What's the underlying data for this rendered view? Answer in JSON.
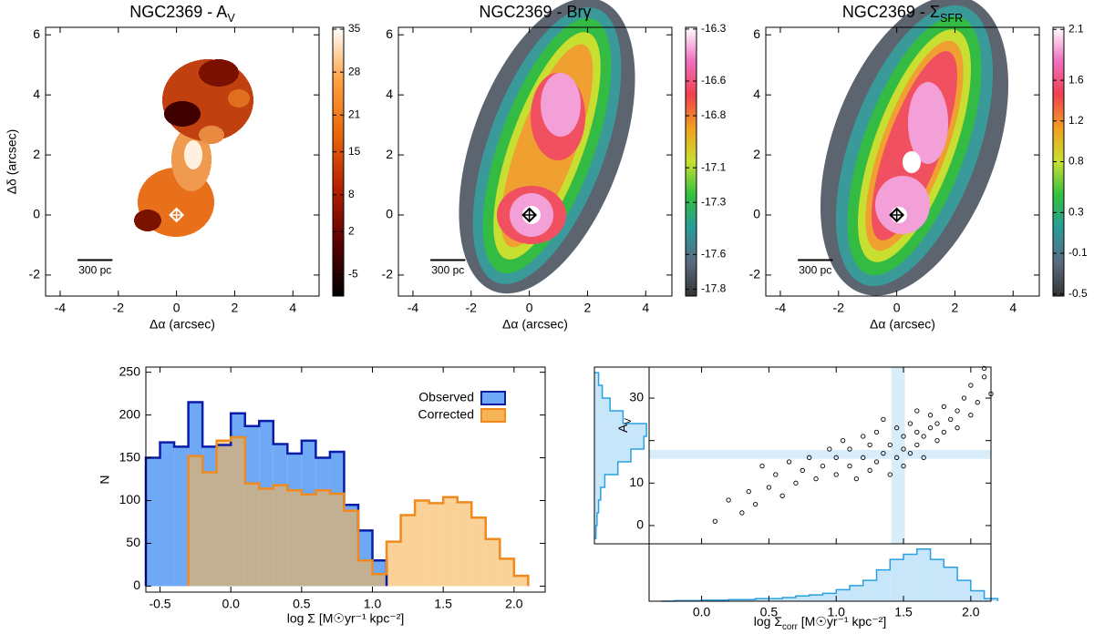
{
  "chart_data": [
    {
      "type": "heatmap",
      "title": {
        "text": "NGC2369 - A",
        "sub": "V"
      },
      "xlabel": "Δα (arcsec)",
      "ylabel": "Δδ (arcsec)",
      "xlim": [
        -4.5,
        4.9
      ],
      "ylim": [
        -2.7,
        6.25
      ],
      "xticks": [
        -4,
        -2,
        0,
        2,
        4
      ],
      "yticks": [
        -2,
        0,
        2,
        4,
        6
      ],
      "clim": [
        -8.5,
        35.3
      ],
      "cticks": [
        35,
        28,
        21,
        15,
        8,
        2,
        -5
      ],
      "colormap": [
        "#000000",
        "#5a0000",
        "#b42000",
        "#e8650a",
        "#ffa040",
        "#ffffff"
      ],
      "nucleus": [
        0,
        0
      ],
      "markercolor": "#ffffff",
      "scalebar": {
        "label": "300 pc",
        "x": [
          -3.4,
          -2.2
        ],
        "y": -1.5
      }
    },
    {
      "type": "heatmap",
      "title": {
        "text": "NGC2369 - Brγ"
      },
      "xlabel": "Δα (arcsec)",
      "xlim": [
        -4.5,
        4.9
      ],
      "ylim": [
        -2.7,
        6.25
      ],
      "xticks": [
        -4,
        -2,
        0,
        2,
        4
      ],
      "yticks": [
        -2,
        0,
        2,
        4,
        6
      ],
      "clim": [
        -17.84,
        -16.29
      ],
      "cticks": [
        -16.3,
        -16.6,
        -16.8,
        -17.1,
        -17.3,
        -17.6,
        -17.8
      ],
      "colormap": [
        "#333333",
        "#5a6a80",
        "#2a9a9a",
        "#30c040",
        "#c8e030",
        "#f0a020",
        "#f04050",
        "#f070c0",
        "#ffffff"
      ],
      "nucleus": [
        0,
        0
      ],
      "markercolor": "#000000",
      "scalebar": {
        "label": "300 pc",
        "x": [
          -3.4,
          -2.2
        ],
        "y": -1.5
      }
    },
    {
      "type": "heatmap",
      "title": {
        "text": "NGC2369 - Σ",
        "sub": "SFR"
      },
      "xlabel": "Δα (arcsec)",
      "xlim": [
        -4.5,
        4.9
      ],
      "ylim": [
        -2.7,
        6.25
      ],
      "xticks": [
        -4,
        -2,
        0,
        2,
        4
      ],
      "yticks": [
        -2,
        0,
        2,
        4,
        6
      ],
      "clim": [
        -0.52,
        2.12
      ],
      "cticks": [
        2.1,
        1.6,
        1.2,
        0.8,
        0.3,
        -0.1,
        -0.5
      ],
      "colormap": [
        "#333333",
        "#5a6a80",
        "#2a9a9a",
        "#30c040",
        "#c8e030",
        "#f0a020",
        "#f04050",
        "#f070c0",
        "#ffffff"
      ],
      "nucleus": [
        0,
        0
      ],
      "markercolor": "#000000",
      "scalebar": {
        "label": "300 pc",
        "x": [
          -3.4,
          -2.2
        ],
        "y": -1.5
      }
    },
    {
      "type": "histogram",
      "xlabel": "log Σ [M☉yr⁻¹ kpc⁻²]",
      "ylabel": "N",
      "bins": [
        -0.6,
        -0.5,
        -0.4,
        -0.3,
        -0.2,
        -0.1,
        0,
        0.1,
        0.2,
        0.3,
        0.4,
        0.5,
        0.6,
        0.7,
        0.8,
        0.9,
        1,
        1.1,
        1.2,
        1.3,
        1.4,
        1.5,
        1.6,
        1.7,
        1.8,
        1.9,
        2,
        2.1
      ],
      "series": [
        {
          "name": "Observed",
          "color": "#6fa8f5",
          "edgecolor": "#0a1ca8",
          "values": [
            150,
            168,
            163,
            215,
            163,
            165,
            202,
            187,
            193,
            166,
            155,
            170,
            150,
            157,
            95,
            65,
            30,
            0,
            0,
            0,
            0,
            0,
            0,
            0,
            0,
            0,
            0
          ]
        },
        {
          "name": "Corrected",
          "color": "#f7b456",
          "edgecolor": "#f08a1e",
          "values": [
            0,
            0,
            0,
            152,
            133,
            170,
            174,
            120,
            114,
            118,
            112,
            107,
            112,
            108,
            88,
            30,
            14,
            52,
            83,
            100,
            97,
            104,
            98,
            80,
            55,
            32,
            12
          ]
        }
      ],
      "xlim": [
        -0.6,
        2.22
      ],
      "ylim": [
        -7,
        256
      ],
      "xticks": [
        -0.5,
        {
          "value": 0,
          "label": "0.0"
        },
        0.5,
        {
          "value": 1,
          "label": "1.0"
        },
        1.5,
        {
          "value": 2,
          "label": "2.0"
        }
      ],
      "yticks": [
        0,
        50,
        100,
        150,
        200,
        250
      ],
      "legend": "upper right"
    },
    {
      "type": "scatter",
      "xlabel": {
        "text": "log Σ",
        "sub": "corr",
        "rest": " [M☉yr⁻¹ kpc⁻²]"
      },
      "ylabel": {
        "text": "A",
        "sub": "V"
      },
      "x": [
        0.1,
        0.2,
        0.3,
        0.35,
        0.4,
        0.45,
        0.5,
        0.55,
        0.6,
        0.65,
        0.7,
        0.75,
        0.8,
        0.85,
        0.9,
        0.95,
        1.0,
        1.0,
        1.05,
        1.1,
        1.1,
        1.15,
        1.2,
        1.2,
        1.25,
        1.25,
        1.3,
        1.3,
        1.35,
        1.35,
        1.4,
        1.4,
        1.45,
        1.45,
        1.5,
        1.5,
        1.5,
        1.55,
        1.55,
        1.6,
        1.6,
        1.6,
        1.65,
        1.65,
        1.7,
        1.7,
        1.75,
        1.75,
        1.8,
        1.8,
        1.85,
        1.9,
        1.9,
        1.95,
        2.0,
        2.0,
        2.05,
        2.1,
        2.15,
        2.1
      ],
      "y": [
        1,
        6,
        3,
        8,
        5,
        14,
        9,
        12,
        7,
        15,
        10,
        13,
        16,
        11,
        14,
        18,
        12,
        16,
        20,
        14,
        18,
        11,
        16,
        21,
        13,
        19,
        15,
        22,
        17,
        25,
        12,
        19,
        16,
        23,
        14,
        18,
        21,
        17,
        24,
        19,
        22,
        27,
        16,
        21,
        23,
        26,
        20,
        24,
        22,
        28,
        25,
        27,
        23,
        30,
        26,
        33,
        29,
        35,
        31,
        37
      ],
      "markercolor": "#000000",
      "bandcolor": "#d8ecfa",
      "xlim": [
        -0.39,
        2.15
      ],
      "ylim": [
        -4.3,
        37.3
      ],
      "xticks": [
        {
          "value": 0,
          "label": "0.0"
        },
        0.5,
        {
          "value": 1,
          "label": "1.0"
        },
        1.5,
        {
          "value": 2,
          "label": "2.0"
        }
      ],
      "yticks": [
        0,
        10,
        20,
        30
      ],
      "xband": [
        1.41,
        1.51
      ],
      "yband": [
        15.7,
        17.8
      ],
      "x_hist": {
        "bins": [
          -0.3,
          -0.2,
          -0.1,
          0,
          0.1,
          0.2,
          0.3,
          0.4,
          0.5,
          0.6,
          0.7,
          0.8,
          0.9,
          1,
          1.1,
          1.2,
          1.3,
          1.4,
          1.5,
          1.6,
          1.7,
          1.8,
          1.9,
          2,
          2.1,
          2.2
        ],
        "values": [
          0,
          0.01,
          0.01,
          0.02,
          0.02,
          0.03,
          0.03,
          0.05,
          0.05,
          0.07,
          0.1,
          0.12,
          0.15,
          0.22,
          0.3,
          0.4,
          0.6,
          0.8,
          0.9,
          1.0,
          0.8,
          0.65,
          0.4,
          0.2,
          0.05
        ],
        "hlim": [
          0,
          1.1
        ]
      },
      "y_hist": {
        "bins": [
          -3,
          0,
          3,
          6,
          9,
          12,
          15,
          18,
          21,
          24,
          27,
          30,
          33,
          36
        ],
        "values": [
          0.03,
          0.05,
          0.08,
          0.12,
          0.2,
          0.45,
          0.7,
          0.95,
          1.0,
          0.55,
          0.3,
          0.15,
          0.08
        ],
        "hlim": [
          0,
          1.05
        ]
      },
      "histcolor": "#c8e6fa",
      "histedge": "#2aa0e0"
    }
  ]
}
